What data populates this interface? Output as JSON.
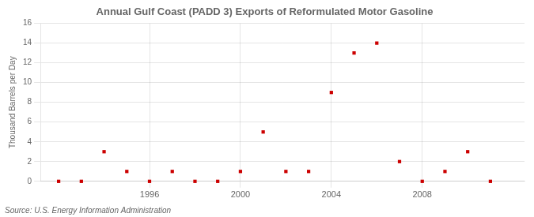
{
  "chart_data": {
    "type": "scatter",
    "title": "Annual Gulf Coast (PADD 3) Exports of Reformulated Motor Gasoline",
    "y_label": "Thousand Barrels per Day",
    "annotations": [
      "Source: U.S. Energy Information Administration"
    ],
    "x": [
      1992,
      1993,
      1994,
      1995,
      1996,
      1997,
      1998,
      1999,
      2000,
      2001,
      2002,
      2003,
      2004,
      2005,
      2006,
      2007,
      2008,
      2009,
      2010,
      2011
    ],
    "values": [
      0,
      0,
      3,
      1,
      0,
      1,
      0,
      0,
      1,
      5,
      1,
      1,
      9,
      13,
      14,
      2,
      0,
      1,
      3,
      0
    ],
    "color": "#cc0000",
    "marker": "square",
    "xlim": [
      1991.2,
      2012.5
    ],
    "xticks": [
      1996,
      2000,
      2004,
      2008
    ],
    "ylim": [
      0,
      16
    ],
    "yticks": [
      0,
      2,
      4,
      6,
      8,
      10,
      12,
      14,
      16
    ],
    "grid": true
  }
}
